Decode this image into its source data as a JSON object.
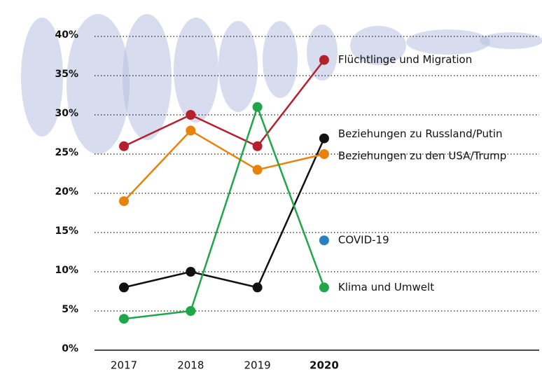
{
  "chart_data": {
    "type": "line",
    "categories": [
      "2017",
      "2018",
      "2019",
      "2020"
    ],
    "series": [
      {
        "name": "Flüchtlinge und Migration",
        "color": "#b5202e",
        "values": [
          26,
          30,
          26,
          37
        ]
      },
      {
        "name": "Beziehungen zu Russland/Putin",
        "color": "#111111",
        "values": [
          8,
          10,
          8,
          27
        ]
      },
      {
        "name": "Beziehungen zu den USA/Trump",
        "color": "#e8820c",
        "values": [
          19,
          28,
          23,
          25
        ]
      },
      {
        "name": "COVID-19",
        "color": "#2a7fc1",
        "values": [
          null,
          null,
          null,
          14
        ]
      },
      {
        "name": "Klima und Umwelt",
        "color": "#1fa64a",
        "values": [
          4,
          5,
          31,
          8
        ]
      }
    ],
    "ylim": [
      0,
      40
    ],
    "yticks": [
      {
        "value": 0,
        "label": "0%"
      },
      {
        "value": 5,
        "label": "5%"
      },
      {
        "value": 10,
        "label": "10%"
      },
      {
        "value": 15,
        "label": "15%"
      },
      {
        "value": 20,
        "label": "20%"
      },
      {
        "value": 25,
        "label": "25%"
      },
      {
        "value": 30,
        "label": "30%"
      },
      {
        "value": 35,
        "label": "35%"
      },
      {
        "value": 40,
        "label": "40%"
      }
    ],
    "grid": true
  }
}
